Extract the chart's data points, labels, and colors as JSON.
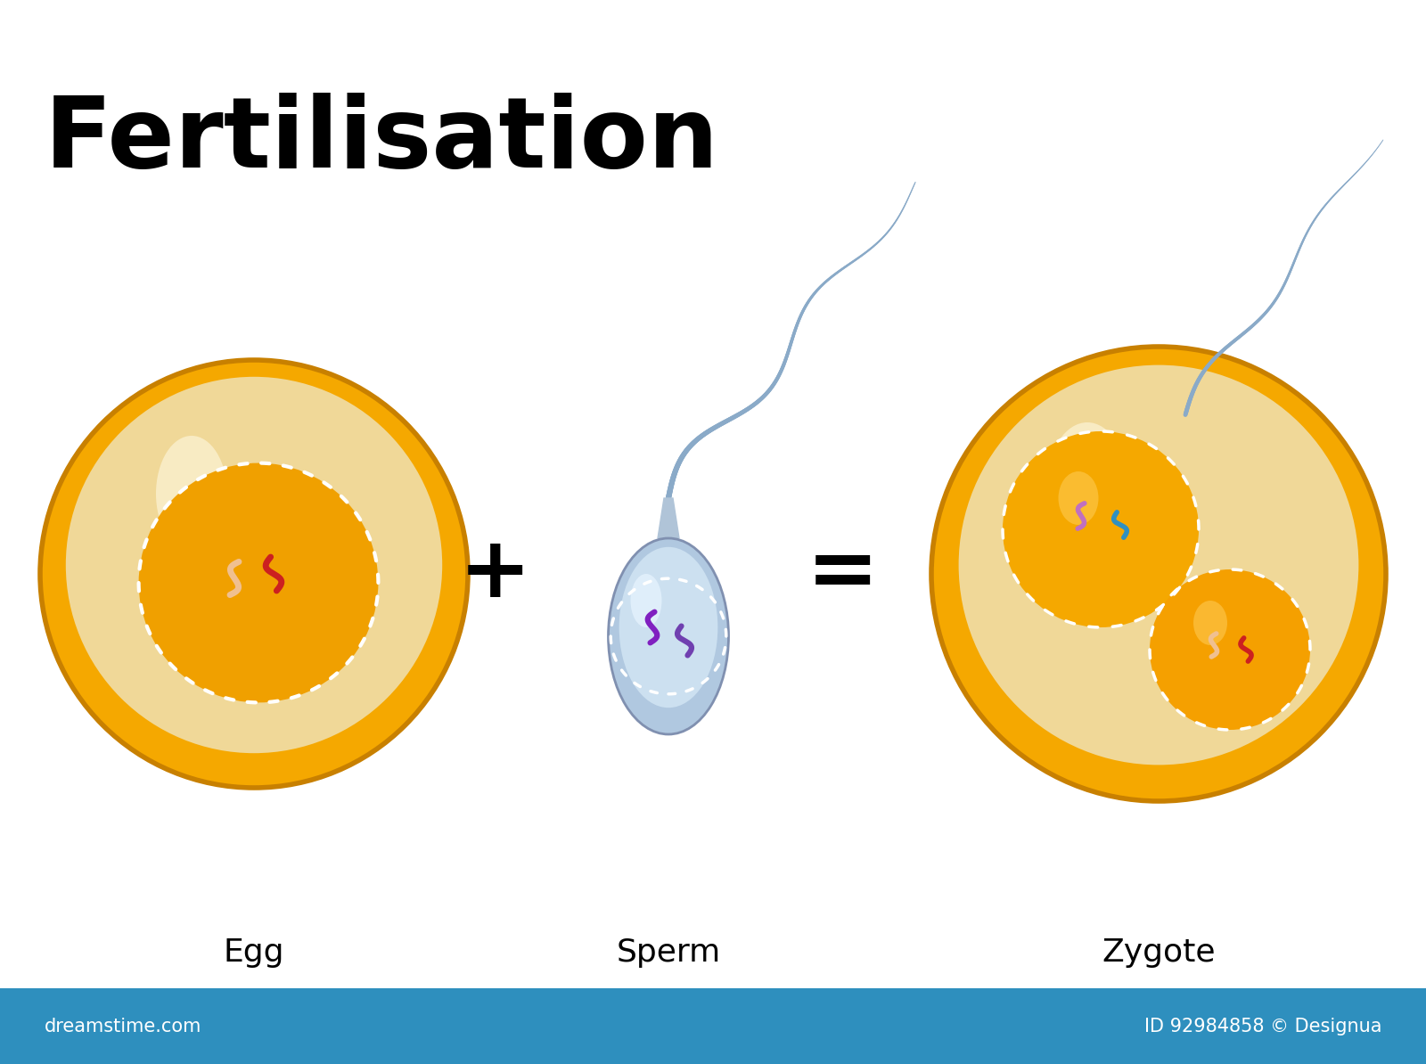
{
  "title": "Fertilisation",
  "title_fontsize": 80,
  "title_color": "#000000",
  "title_weight": "bold",
  "bg_color": "#ffffff",
  "footer_color": "#2e8fbe",
  "footer_text_left": "dreamstime.com",
  "footer_text_right": "ID 92984858 © Designua",
  "label_fontsize": 26,
  "egg_outer_color": "#f5a800",
  "egg_inner_color": "#f0d898",
  "egg_nucleus_color": "#f0a000",
  "sperm_body_color": "#b8cfe8",
  "sperm_head_color": "#c8dff0",
  "sperm_inner_color": "#ddeeff",
  "sperm_tail_color": "#8aaac8",
  "zygote_outer_color": "#f5a800",
  "zygote_inner_color": "#f0d898",
  "chr_peach": "#f0c090",
  "chr_red": "#cc2020",
  "chr_pink": "#e85090",
  "chr_purple": "#8020c0",
  "chr_violet": "#7040b0",
  "chr_blue": "#3090c0",
  "chr_mauve": "#c070c0"
}
